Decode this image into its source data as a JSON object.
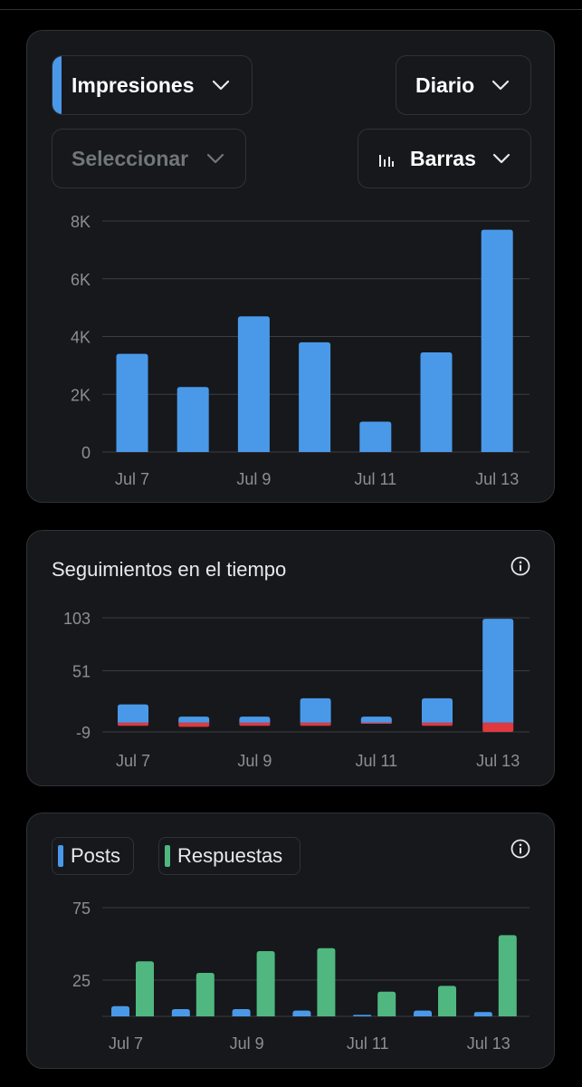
{
  "impressions_card": {
    "metric_select": "Impresiones",
    "period_select": "Diario",
    "compare_select": "Seleccionar",
    "chart_type_select": "Barras"
  },
  "follows_card": {
    "title": "Seguimientos en el tiempo"
  },
  "posts_card": {
    "legend": [
      {
        "label": "Posts",
        "color": "#4a99e9"
      },
      {
        "label": "Respuestas",
        "color": "#4fb77f"
      }
    ]
  },
  "colors": {
    "accent": "#4a99e9",
    "green": "#4fb77f",
    "red": "#e0393e",
    "card_bg": "#16181c",
    "border": "#2f3336"
  },
  "chart_data": [
    {
      "type": "bar",
      "categories": [
        "Jul 7",
        "Jul 8",
        "Jul 9",
        "Jul 10",
        "Jul 11",
        "Jul 12",
        "Jul 13"
      ],
      "x_tick_labels": [
        "Jul 7",
        "",
        "Jul 9",
        "",
        "Jul 11",
        "",
        "Jul 13"
      ],
      "values": [
        3400,
        2250,
        4700,
        3800,
        1050,
        3450,
        7700
      ],
      "y_ticks": [
        0,
        2000,
        4000,
        6000,
        8000
      ],
      "y_tick_labels": [
        "0",
        "2K",
        "4K",
        "6K",
        "8K"
      ],
      "ylim": [
        0,
        8000
      ],
      "grid": true,
      "series_color": "#4a99e9"
    },
    {
      "type": "bar",
      "categories": [
        "Jul 7",
        "Jul 8",
        "Jul 9",
        "Jul 10",
        "Jul 11",
        "Jul 12",
        "Jul 13"
      ],
      "x_tick_labels": [
        "Jul 7",
        "",
        "Jul 9",
        "",
        "Jul 11",
        "",
        "Jul 13"
      ],
      "series": [
        {
          "values": [
            18,
            6,
            6,
            24,
            6,
            24,
            102
          ],
          "color": "#4a99e9"
        },
        {
          "values": [
            -3,
            -4,
            -3,
            -3,
            -1,
            -3,
            -9
          ],
          "color": "#e0393e"
        }
      ],
      "stacked": true,
      "y_ticks": [
        -9,
        51,
        103
      ],
      "y_tick_labels": [
        "-9",
        "51",
        "103"
      ],
      "ylim": [
        -9,
        103
      ],
      "grid": true
    },
    {
      "type": "bar",
      "categories": [
        "Jul 7",
        "Jul 8",
        "Jul 9",
        "Jul 10",
        "Jul 11",
        "Jul 12",
        "Jul 13"
      ],
      "x_tick_labels": [
        "Jul 7",
        "",
        "Jul 9",
        "",
        "Jul 11",
        "",
        "Jul 13"
      ],
      "series": [
        {
          "name": "Posts",
          "values": [
            7,
            5,
            5,
            4,
            1,
            4,
            3
          ],
          "color": "#4a99e9"
        },
        {
          "name": "Respuestas",
          "values": [
            38,
            30,
            45,
            47,
            17,
            21,
            56
          ],
          "color": "#4fb77f"
        }
      ],
      "y_ticks": [
        0,
        25,
        75
      ],
      "y_tick_labels": [
        "",
        "25",
        "75"
      ],
      "ylim": [
        0,
        75
      ],
      "grid": true
    }
  ]
}
